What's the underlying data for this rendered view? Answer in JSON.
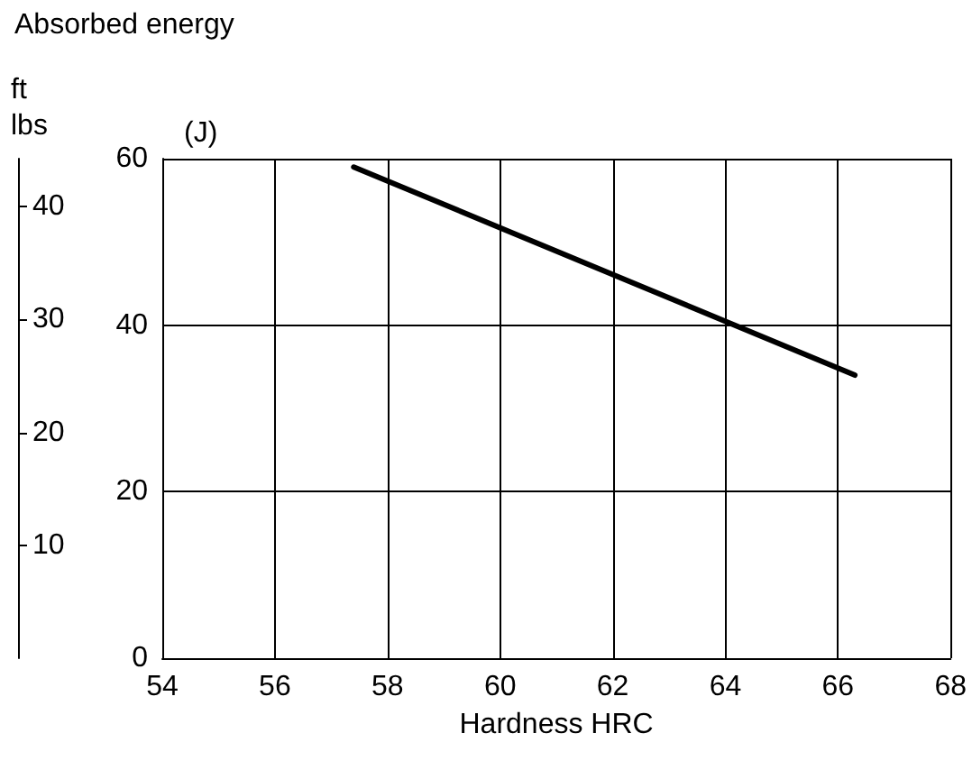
{
  "chart_data": {
    "type": "line",
    "xlabel": "Hardness HRC",
    "ylabel": "(J)",
    "y2label": "ft lbs",
    "annotations": [
      "Absorbed energy"
    ],
    "x": [
      57.4,
      66.3
    ],
    "series": [
      {
        "color": "#000000",
        "values": [
          59,
          34
        ]
      }
    ],
    "xlim": [
      54,
      68
    ],
    "xticks": [
      54,
      56,
      58,
      60,
      62,
      64,
      66,
      68
    ],
    "ylim": [
      0,
      60
    ],
    "yticks": [
      0,
      20,
      40,
      60
    ],
    "y2lim": [
      0,
      44.25
    ],
    "y2ticks": [
      10,
      20,
      30,
      40
    ],
    "grid": true,
    "marker": "none",
    "line_style": "solid"
  }
}
